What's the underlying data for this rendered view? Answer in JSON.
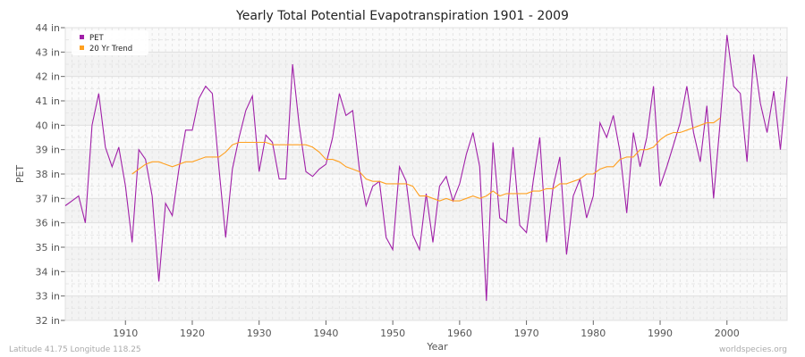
{
  "chart_data": {
    "type": "line",
    "title": "Yearly Total Potential Evapotranspiration 1901 - 2009",
    "xlabel": "Year",
    "ylabel": "PET",
    "xlim": [
      1901,
      2009
    ],
    "ylim": [
      32,
      44
    ],
    "y_unit": "in",
    "x_ticks": [
      1910,
      1920,
      1930,
      1940,
      1950,
      1960,
      1970,
      1980,
      1990,
      2000
    ],
    "y_ticks": [
      "32 in",
      "33 in",
      "34 in",
      "35 in",
      "36 in",
      "37 in",
      "38 in",
      "39 in",
      "40 in",
      "41 in",
      "42 in",
      "43 in",
      "44 in"
    ],
    "grid": true,
    "legend_position": "top-left",
    "series": [
      {
        "name": "PET",
        "color": "#a020a8",
        "start_year": 1901,
        "values": [
          36.7,
          36.9,
          37.1,
          36.0,
          40.0,
          41.3,
          39.1,
          38.3,
          39.1,
          37.5,
          35.2,
          39.0,
          38.6,
          37.1,
          33.6,
          36.8,
          36.3,
          38.2,
          39.8,
          39.8,
          41.1,
          41.6,
          41.3,
          38.2,
          35.4,
          38.2,
          39.5,
          40.6,
          41.2,
          38.1,
          39.6,
          39.3,
          37.8,
          37.8,
          42.5,
          40.0,
          38.1,
          37.9,
          38.2,
          38.4,
          39.5,
          41.3,
          40.4,
          40.6,
          38.2,
          36.7,
          37.5,
          37.7,
          35.4,
          34.9,
          38.3,
          37.7,
          35.5,
          34.9,
          37.2,
          35.2,
          37.5,
          37.9,
          36.9,
          37.6,
          38.8,
          39.7,
          38.3,
          32.8,
          39.3,
          36.2,
          36.0,
          39.1,
          35.9,
          35.6,
          37.7,
          39.5,
          35.2,
          37.5,
          38.7,
          34.7,
          37.1,
          37.8,
          36.2,
          37.1,
          40.1,
          39.5,
          40.4,
          38.9,
          36.4,
          39.7,
          38.3,
          39.5,
          41.6,
          37.5,
          38.3,
          39.2,
          40.1,
          41.6,
          39.7,
          38.5,
          40.8,
          37.0,
          40.2,
          43.7,
          41.6,
          41.3,
          38.5,
          42.9,
          40.9,
          39.7,
          41.4,
          39.0,
          42.0
        ]
      },
      {
        "name": "20 Yr Trend",
        "color": "#ffa020",
        "start_year": 1911,
        "values": [
          38.0,
          38.2,
          38.4,
          38.5,
          38.5,
          38.4,
          38.3,
          38.4,
          38.5,
          38.5,
          38.6,
          38.7,
          38.7,
          38.7,
          38.9,
          39.2,
          39.3,
          39.3,
          39.3,
          39.3,
          39.3,
          39.2,
          39.2,
          39.2,
          39.2,
          39.2,
          39.2,
          39.1,
          38.9,
          38.6,
          38.6,
          38.5,
          38.3,
          38.2,
          38.1,
          37.8,
          37.7,
          37.7,
          37.6,
          37.6,
          37.6,
          37.6,
          37.5,
          37.1,
          37.1,
          37.0,
          36.9,
          37.0,
          36.9,
          36.9,
          37.0,
          37.1,
          37.0,
          37.1,
          37.3,
          37.1,
          37.2,
          37.2,
          37.2,
          37.2,
          37.3,
          37.3,
          37.4,
          37.4,
          37.6,
          37.6,
          37.7,
          37.8,
          38.0,
          38.0,
          38.2,
          38.3,
          38.3,
          38.6,
          38.7,
          38.7,
          39.0,
          39.0,
          39.1,
          39.4,
          39.6,
          39.7,
          39.7,
          39.8,
          39.9,
          40.0,
          40.1,
          40.1,
          40.3
        ]
      }
    ]
  },
  "footer": {
    "location": "Latitude 41.75 Longitude 118.25",
    "source": "worldspecies.org"
  }
}
